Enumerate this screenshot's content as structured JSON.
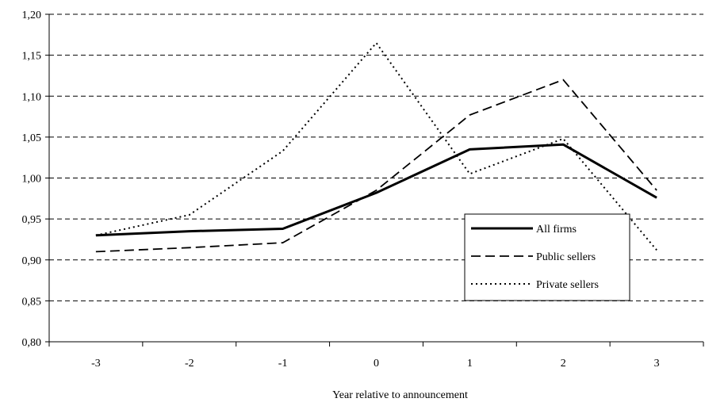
{
  "chart_data": {
    "type": "line",
    "title": "",
    "xlabel": "Year relative to announcement",
    "ylabel": "",
    "categories": [
      "-3",
      "-2",
      "-1",
      "0",
      "1",
      "2",
      "3"
    ],
    "ylim": [
      0.8,
      1.2
    ],
    "y_ticks": [
      "0,80",
      "0,85",
      "0,90",
      "0,95",
      "1,00",
      "1,05",
      "1,10",
      "1,15",
      "1,20"
    ],
    "y_tick_values": [
      0.8,
      0.85,
      0.9,
      0.95,
      1.0,
      1.05,
      1.1,
      1.15,
      1.2
    ],
    "grid": "horizontal dashed",
    "legend_position": "right",
    "series": [
      {
        "name": "All firms",
        "style": "solid",
        "values": [
          0.93,
          0.935,
          0.938,
          0.982,
          1.035,
          1.041,
          0.976
        ]
      },
      {
        "name": "Public sellers",
        "style": "dashed",
        "values": [
          0.91,
          0.915,
          0.921,
          0.985,
          1.077,
          1.12,
          0.985
        ]
      },
      {
        "name": "Private sellers",
        "style": "dotted",
        "values": [
          0.93,
          0.955,
          1.033,
          1.165,
          1.005,
          1.048,
          0.912
        ]
      }
    ]
  }
}
